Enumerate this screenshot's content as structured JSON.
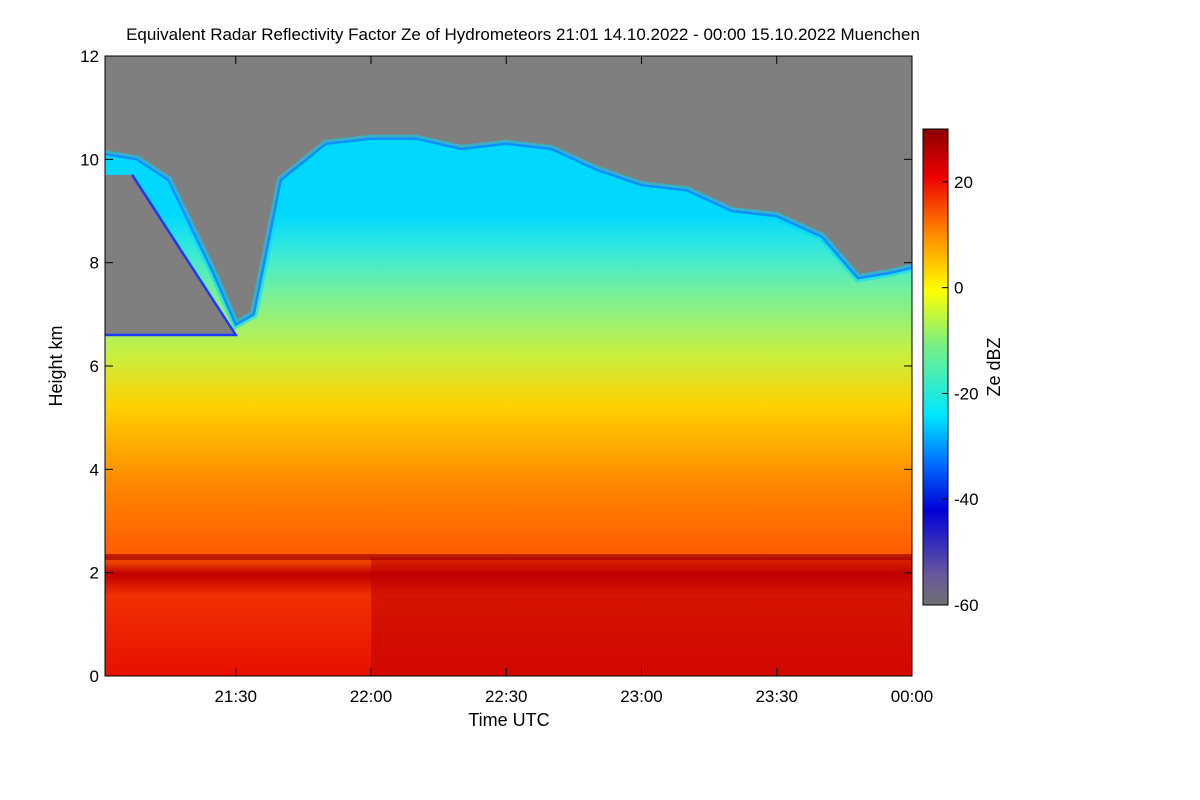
{
  "chart_data": {
    "type": "heatmap",
    "title": "Equivalent Radar Reflectivity Factor Ze of Hydrometeors   21:01 14.10.2022 - 00:00 15.10.2022 Muenchen",
    "xlabel": "Time UTC",
    "ylabel": "Height km",
    "colorbar_label": "Ze dBZ",
    "xlim_minutes_after_2100": [
      1,
      180
    ],
    "x_ticks": [
      {
        "label": "21:30",
        "minutes_after_2100": 30
      },
      {
        "label": "22:00",
        "minutes_after_2100": 60
      },
      {
        "label": "22:30",
        "minutes_after_2100": 90
      },
      {
        "label": "23:00",
        "minutes_after_2100": 120
      },
      {
        "label": "23:30",
        "minutes_after_2100": 150
      },
      {
        "label": "00:00",
        "minutes_after_2100": 180
      }
    ],
    "ylim": [
      0,
      12
    ],
    "y_ticks": [
      0,
      2,
      4,
      6,
      8,
      10,
      12
    ],
    "colorbar_range": [
      -60,
      30
    ],
    "colorbar_ticks": [
      20,
      0,
      -20,
      -40,
      -60
    ],
    "no_data_color": "#7f7f7f",
    "melting_layer_height_km": 2.3,
    "echo_top_km": [
      {
        "t": 1,
        "top": 10.1
      },
      {
        "t": 8,
        "top": 10.0
      },
      {
        "t": 15,
        "top": 9.6
      },
      {
        "t": 25,
        "top": 7.8
      },
      {
        "t": 30,
        "top": 6.8
      },
      {
        "t": 34,
        "top": 7.0
      },
      {
        "t": 40,
        "top": 9.6
      },
      {
        "t": 50,
        "top": 10.3
      },
      {
        "t": 60,
        "top": 10.4
      },
      {
        "t": 70,
        "top": 10.4
      },
      {
        "t": 80,
        "top": 10.2
      },
      {
        "t": 90,
        "top": 10.3
      },
      {
        "t": 100,
        "top": 10.2
      },
      {
        "t": 110,
        "top": 9.8
      },
      {
        "t": 120,
        "top": 9.5
      },
      {
        "t": 130,
        "top": 9.4
      },
      {
        "t": 140,
        "top": 9.0
      },
      {
        "t": 150,
        "top": 8.9
      },
      {
        "t": 160,
        "top": 8.5
      },
      {
        "t": 168,
        "top": 7.7
      },
      {
        "t": 175,
        "top": 7.8
      },
      {
        "t": 180,
        "top": 7.9
      }
    ],
    "gap_region_km": {
      "t_start": 1,
      "t_end": 30,
      "top": 9.7,
      "bottom": 6.6
    }
  }
}
